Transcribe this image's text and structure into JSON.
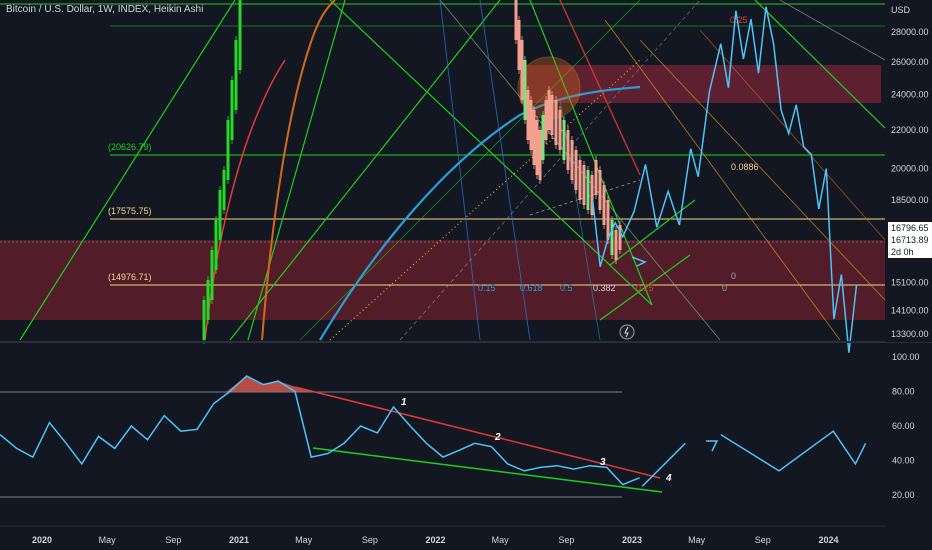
{
  "header": {
    "title": "Bitcoin / U.S. Dollar, 1W, INDEX, Heikin Ashi"
  },
  "colors": {
    "background": "#131722",
    "zone": "#5a1e2a",
    "green_line": "#1ccf1c",
    "blue_line": "#2a9fd6",
    "orange_line": "#d2691e",
    "fib_yellow": "#f5d58a",
    "red_line": "#e53935",
    "projection": "#4fc3f7"
  },
  "chart_data": [
    {
      "type": "line",
      "pane": "price",
      "title": "Bitcoin / U.S. Dollar, 1W, INDEX, Heikin Ashi",
      "currency": "USD",
      "yscale": "log",
      "ylim": [
        13000,
        33000
      ],
      "yticks": [
        13300,
        14100,
        15100,
        16700,
        18500,
        20000,
        22000,
        24000,
        26000,
        28000
      ],
      "ytick_labels": [
        "13300.00",
        "14100.00",
        "15100.00",
        "16700.00",
        "18500.00",
        "20000.00",
        "22000.00",
        "24000.00",
        "26000.00",
        "28000.00"
      ],
      "price_labels": [
        "16796.65",
        "16713.89",
        "2d 0h"
      ],
      "level_labels": [
        "(20626.79)",
        "(17575.75)",
        "(14976.71)"
      ],
      "fib_labels": [
        "0.25",
        "0.0886",
        "0",
        "0.15",
        "0.618",
        "0.5",
        "0.382",
        "0.25",
        "0"
      ],
      "x_ticks": [
        "2020",
        "May",
        "Sep",
        "2021",
        "May",
        "Sep",
        "2022",
        "May",
        "Sep",
        "2023",
        "May",
        "Sep",
        "2024"
      ],
      "series": [
        {
          "name": "",
          "x": [
            "2022-10-20",
            "2022-11-03",
            "2022-11-17",
            "2022-12-01",
            "2022-12-15",
            "2023-01-05",
            "2023-01-26",
            "2023-02-16",
            "2023-03-09",
            "2023-03-30",
            "2023-04-20",
            "2023-05-04",
            "2023-05-25",
            "2023-06-15",
            "2023-06-29",
            "2023-07-13",
            "2023-07-27",
            "2023-08-10",
            "2023-08-24",
            "2023-09-07",
            "2023-09-21",
            "2023-10-05",
            "2023-10-19",
            "2023-11-02",
            "2023-11-16",
            "2023-11-30",
            "2023-12-14",
            "2023-12-28",
            "2024-01-11",
            "2024-01-25",
            "2024-02-08",
            "2024-02-22"
          ],
          "y": [
            18500,
            15700,
            16800,
            17500,
            16900,
            18000,
            20200,
            17300,
            18900,
            17400,
            21000,
            19600,
            24200,
            27200,
            24400,
            29500,
            26200,
            28900,
            25300,
            29800,
            27200,
            23100,
            21800,
            23400,
            21100,
            20700,
            18100,
            20000,
            13800,
            15400,
            12700,
            15000
          ]
        }
      ]
    },
    {
      "type": "line",
      "pane": "oscillator",
      "ylim": [
        10,
        108
      ],
      "yticks": [
        20,
        40,
        60,
        80,
        100
      ],
      "ytick_labels": [
        "20.00",
        "40.00",
        "60.00",
        "80.00",
        "100.00"
      ],
      "wave_labels": [
        "1",
        "2",
        "3",
        "4"
      ],
      "series": [
        {
          "name": "",
          "x": [
            "2019-10-15",
            "2019-11-15",
            "2019-12-15",
            "2020-01-15",
            "2020-02-15",
            "2020-03-15",
            "2020-04-15",
            "2020-05-15",
            "2020-06-15",
            "2020-07-15",
            "2020-08-15",
            "2020-09-15",
            "2020-10-15",
            "2020-11-15",
            "2020-12-15",
            "2021-01-15",
            "2021-02-15",
            "2021-03-15",
            "2021-04-15",
            "2021-05-15",
            "2021-06-15",
            "2021-07-15",
            "2021-08-15",
            "2021-09-15",
            "2021-10-15",
            "2021-11-15",
            "2021-12-15",
            "2022-01-15",
            "2022-02-15",
            "2022-03-15",
            "2022-04-15",
            "2022-05-15",
            "2022-06-15",
            "2022-07-15",
            "2022-08-15",
            "2022-09-15",
            "2022-10-15",
            "2022-11-15",
            "2022-12-15",
            "2023-01-15"
          ],
          "y": [
            55,
            47,
            42,
            62,
            50,
            38,
            54,
            47,
            60,
            52,
            66,
            57,
            58,
            73,
            80,
            89,
            84,
            86,
            80,
            42,
            44,
            50,
            60,
            56,
            71,
            60,
            50,
            42,
            46,
            50,
            48,
            38,
            34,
            36,
            37,
            35,
            37,
            36,
            26,
            30
          ]
        },
        {
          "name": "",
          "x": [
            "2023-01-20",
            "2023-04-10"
          ],
          "y": [
            25,
            50
          ]
        },
        {
          "name": "",
          "x": [
            "2023-06-15",
            "2023-10-01",
            "2024-01-10",
            "2024-02-20",
            "2024-03-10"
          ],
          "y": [
            55,
            34,
            57,
            38,
            50
          ]
        }
      ]
    }
  ]
}
